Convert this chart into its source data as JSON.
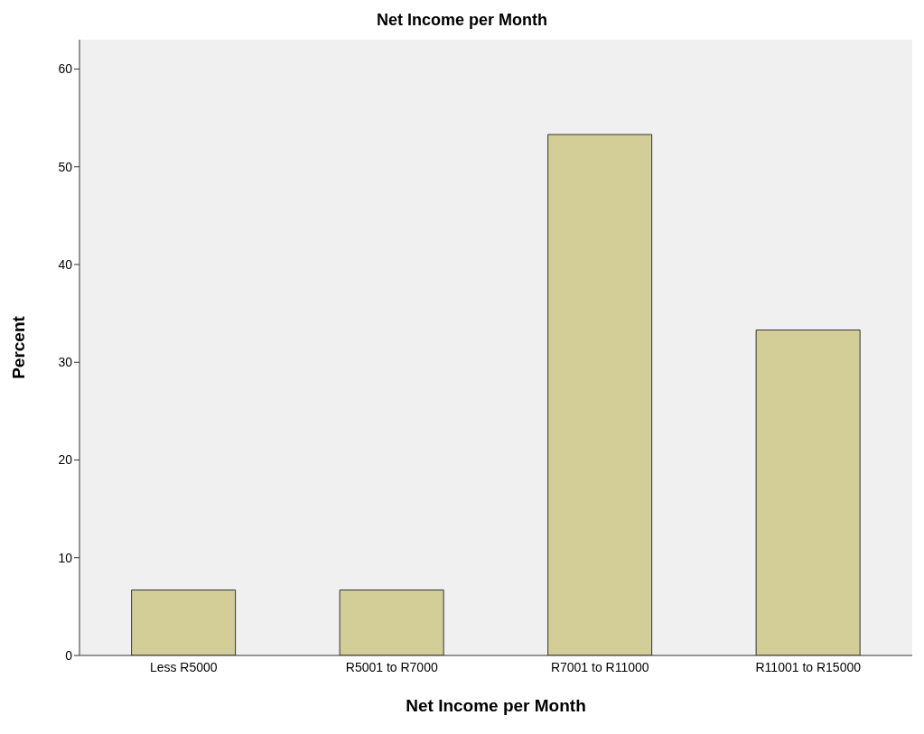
{
  "chart_data": {
    "type": "bar",
    "title": "Net Income per Month",
    "xlabel": "Net Income per Month",
    "ylabel": "Percent",
    "categories": [
      "Less R5000",
      "R5001 to R7000",
      "R7001 to R11000",
      "R11001 to R15000"
    ],
    "values": [
      6.7,
      6.7,
      53.3,
      33.3
    ],
    "color": "#d3ce97",
    "ylim": [
      0,
      63
    ],
    "yticks": [
      0,
      10,
      20,
      30,
      40,
      50,
      60
    ]
  }
}
